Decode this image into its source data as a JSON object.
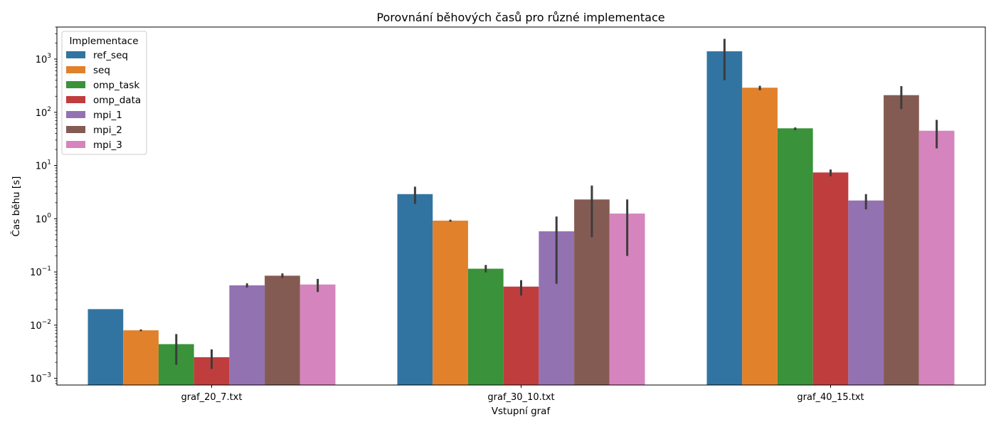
{
  "chart_data": {
    "type": "bar",
    "title": "Porovnání běhových časů pro různé implementace",
    "xlabel": "Vstupní graf",
    "ylabel": "Čas běhu [s]",
    "yscale": "log",
    "ylim": [
      0.00075,
      4000
    ],
    "yticks": [
      {
        "value": 0.001,
        "base": "10",
        "exp": "−3"
      },
      {
        "value": 0.01,
        "base": "10",
        "exp": "−2"
      },
      {
        "value": 0.1,
        "base": "10",
        "exp": "−1"
      },
      {
        "value": 1,
        "base": "10",
        "exp": "0"
      },
      {
        "value": 10,
        "base": "10",
        "exp": "1"
      },
      {
        "value": 100,
        "base": "10",
        "exp": "2"
      },
      {
        "value": 1000,
        "base": "10",
        "exp": "3"
      }
    ],
    "categories": [
      "graf_20_7.txt",
      "graf_30_10.txt",
      "graf_40_15.txt"
    ],
    "legend_title": "Implementace",
    "legend_position": "top-left",
    "series": [
      {
        "name": "ref_seq",
        "color": "#3274a1",
        "values": [
          0.02,
          2.9,
          1400
        ],
        "err_low": [
          null,
          1.9,
          400
        ],
        "err_high": [
          null,
          4.0,
          2400
        ]
      },
      {
        "name": "seq",
        "color": "#e1812c",
        "values": [
          0.008,
          0.92,
          290
        ],
        "err_low": [
          0.0077,
          0.88,
          260
        ],
        "err_high": [
          0.0083,
          0.96,
          315
        ]
      },
      {
        "name": "omp_task",
        "color": "#3a923a",
        "values": [
          0.0044,
          0.115,
          50
        ],
        "err_low": [
          0.0018,
          0.098,
          46
        ],
        "err_high": [
          0.0068,
          0.135,
          52
        ]
      },
      {
        "name": "omp_data",
        "color": "#c03d3e",
        "values": [
          0.0025,
          0.053,
          7.4
        ],
        "err_low": [
          0.0015,
          0.036,
          6.3
        ],
        "err_high": [
          0.0035,
          0.07,
          8.4
        ]
      },
      {
        "name": "mpi_1",
        "color": "#9372b2",
        "values": [
          0.056,
          0.58,
          2.2
        ],
        "err_low": [
          0.051,
          0.06,
          1.5
        ],
        "err_high": [
          0.061,
          1.1,
          2.9
        ]
      },
      {
        "name": "mpi_2",
        "color": "#845b53",
        "values": [
          0.085,
          2.3,
          210
        ],
        "err_low": [
          0.077,
          0.45,
          115
        ],
        "err_high": [
          0.094,
          4.2,
          310
        ]
      },
      {
        "name": "mpi_3",
        "color": "#d684bd",
        "values": [
          0.058,
          1.25,
          45
        ],
        "err_low": [
          0.042,
          0.2,
          21
        ],
        "err_high": [
          0.074,
          2.3,
          72
        ]
      }
    ]
  }
}
